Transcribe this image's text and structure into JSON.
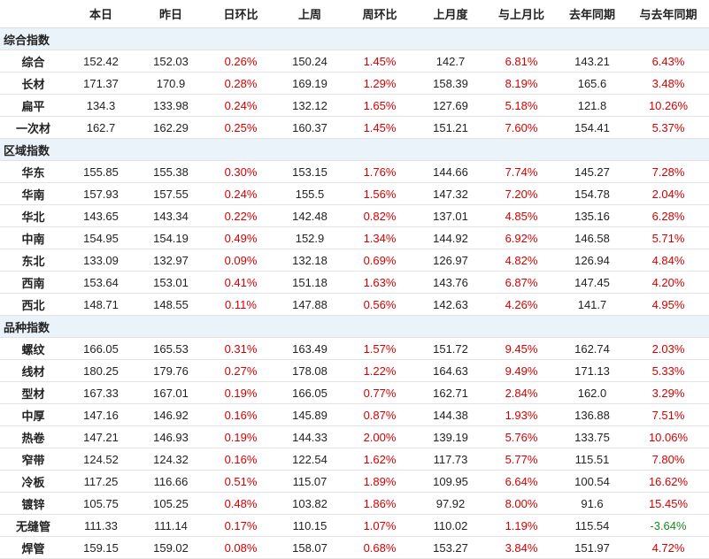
{
  "table": {
    "columns": [
      "本日",
      "昨日",
      "日环比",
      "上周",
      "周环比",
      "上月度",
      "与上月比",
      "去年同期",
      "与去年同期"
    ],
    "sections": [
      {
        "title": "综合指数",
        "rows": [
          [
            "综合",
            "152.42",
            "152.03",
            "0.26%",
            "150.24",
            "1.45%",
            "142.7",
            "6.81%",
            "143.21",
            "6.43%"
          ],
          [
            "长材",
            "171.37",
            "170.9",
            "0.28%",
            "169.19",
            "1.29%",
            "158.39",
            "8.19%",
            "165.6",
            "3.48%"
          ],
          [
            "扁平",
            "134.3",
            "133.98",
            "0.24%",
            "132.12",
            "1.65%",
            "127.69",
            "5.18%",
            "121.8",
            "10.26%"
          ],
          [
            "一次材",
            "162.7",
            "162.29",
            "0.25%",
            "160.37",
            "1.45%",
            "151.21",
            "7.60%",
            "154.41",
            "5.37%"
          ]
        ]
      },
      {
        "title": "区域指数",
        "rows": [
          [
            "华东",
            "155.85",
            "155.38",
            "0.30%",
            "153.15",
            "1.76%",
            "144.66",
            "7.74%",
            "145.27",
            "7.28%"
          ],
          [
            "华南",
            "157.93",
            "157.55",
            "0.24%",
            "155.5",
            "1.56%",
            "147.32",
            "7.20%",
            "154.78",
            "2.04%"
          ],
          [
            "华北",
            "143.65",
            "143.34",
            "0.22%",
            "142.48",
            "0.82%",
            "137.01",
            "4.85%",
            "135.16",
            "6.28%"
          ],
          [
            "中南",
            "154.95",
            "154.19",
            "0.49%",
            "152.9",
            "1.34%",
            "144.92",
            "6.92%",
            "146.58",
            "5.71%"
          ],
          [
            "东北",
            "133.09",
            "132.97",
            "0.09%",
            "132.18",
            "0.69%",
            "126.97",
            "4.82%",
            "126.94",
            "4.84%"
          ],
          [
            "西南",
            "153.64",
            "153.01",
            "0.41%",
            "151.18",
            "1.63%",
            "143.76",
            "6.87%",
            "147.45",
            "4.20%"
          ],
          [
            "西北",
            "148.71",
            "148.55",
            "0.11%",
            "147.88",
            "0.56%",
            "142.63",
            "4.26%",
            "141.7",
            "4.95%"
          ]
        ]
      },
      {
        "title": "品种指数",
        "rows": [
          [
            "螺纹",
            "166.05",
            "165.53",
            "0.31%",
            "163.49",
            "1.57%",
            "151.72",
            "9.45%",
            "162.74",
            "2.03%"
          ],
          [
            "线材",
            "180.25",
            "179.76",
            "0.27%",
            "178.08",
            "1.22%",
            "164.63",
            "9.49%",
            "171.13",
            "5.33%"
          ],
          [
            "型材",
            "167.33",
            "167.01",
            "0.19%",
            "166.05",
            "0.77%",
            "162.71",
            "2.84%",
            "162.0",
            "3.29%"
          ],
          [
            "中厚",
            "147.16",
            "146.92",
            "0.16%",
            "145.89",
            "0.87%",
            "144.38",
            "1.93%",
            "136.88",
            "7.51%"
          ],
          [
            "热卷",
            "147.21",
            "146.93",
            "0.19%",
            "144.33",
            "2.00%",
            "139.19",
            "5.76%",
            "133.75",
            "10.06%"
          ],
          [
            "窄带",
            "124.52",
            "124.32",
            "0.16%",
            "122.54",
            "1.62%",
            "117.73",
            "5.77%",
            "115.51",
            "7.80%"
          ],
          [
            "冷板",
            "117.25",
            "116.66",
            "0.51%",
            "115.07",
            "1.89%",
            "109.95",
            "6.64%",
            "100.54",
            "16.62%"
          ],
          [
            "镀锌",
            "105.75",
            "105.25",
            "0.48%",
            "103.82",
            "1.86%",
            "97.92",
            "8.00%",
            "91.6",
            "15.45%"
          ],
          [
            "无缝管",
            "111.33",
            "111.14",
            "0.17%",
            "110.15",
            "1.07%",
            "110.02",
            "1.19%",
            "115.54",
            "-3.64%"
          ],
          [
            "焊管",
            "159.15",
            "159.02",
            "0.08%",
            "158.07",
            "0.68%",
            "153.27",
            "3.84%",
            "151.97",
            "4.72%"
          ]
        ]
      }
    ]
  }
}
